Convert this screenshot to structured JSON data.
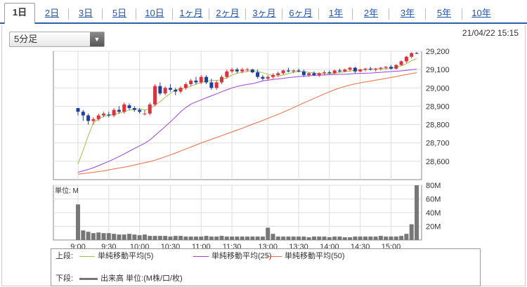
{
  "tabs": [
    "1日",
    "2日",
    "3日",
    "5日",
    "10日",
    "1ヶ月",
    "2ヶ月",
    "3ヶ月",
    "6ヶ月",
    "1年",
    "2年",
    "3年",
    "5年",
    "10年"
  ],
  "active_tab": "1日",
  "interval_select": "5分足",
  "datetime": "21/04/22 15:15",
  "volume_unit_label": "単位: M",
  "legend": {
    "upper_label": "上段:",
    "lower_label": "下段:",
    "ma5": "単純移動平均(5)",
    "ma25": "単純移動平均(25)",
    "ma50": "単純移動平均(50)",
    "volume": "出来高 単位:(M株/口/枚)"
  },
  "colors": {
    "up": "#d9333f",
    "down": "#1f3f9c",
    "ma5": "#9ac44a",
    "ma25": "#9b44d6",
    "ma50": "#ee6a40",
    "volume": "#777777",
    "tab_link": "#2255aa"
  },
  "chart_data": [
    {
      "type": "candlestick",
      "title": "",
      "x": [
        "9:00",
        "9:30",
        "10:00",
        "10:30",
        "11:00",
        "11:30",
        "13:00",
        "13:30",
        "14:00",
        "14:30",
        "15:00"
      ],
      "ylim": [
        28500,
        29200
      ],
      "yticks": [
        28600,
        28700,
        28800,
        28900,
        29000,
        29100,
        29200
      ],
      "ytick_labels": [
        "28,600",
        "28,700",
        "28,800",
        "28,900",
        "29,000",
        "29,100",
        "29,200"
      ],
      "grid": true,
      "candles": [
        [
          28890,
          28890,
          28850,
          28870
        ],
        [
          28870,
          28880,
          28820,
          28850
        ],
        [
          28850,
          28860,
          28800,
          28820
        ],
        [
          28820,
          28840,
          28800,
          28830
        ],
        [
          28830,
          28860,
          28820,
          28850
        ],
        [
          28850,
          28870,
          28840,
          28860
        ],
        [
          28855,
          28870,
          28840,
          28850
        ],
        [
          28850,
          28890,
          28840,
          28880
        ],
        [
          28880,
          28900,
          28860,
          28870
        ],
        [
          28870,
          28920,
          28860,
          28910
        ],
        [
          28905,
          28915,
          28880,
          28890
        ],
        [
          28890,
          28900,
          28870,
          28880
        ],
        [
          28880,
          28890,
          28860,
          28870
        ],
        [
          28860,
          28880,
          28850,
          28860
        ],
        [
          28860,
          28920,
          28850,
          28910
        ],
        [
          28910,
          29020,
          28900,
          29010
        ],
        [
          29010,
          29030,
          28960,
          28970
        ],
        [
          28970,
          29010,
          28960,
          29000
        ],
        [
          29000,
          29020,
          28980,
          28990
        ],
        [
          28990,
          29000,
          28960,
          28980
        ],
        [
          28980,
          29010,
          28970,
          29000
        ],
        [
          29000,
          29030,
          28990,
          29020
        ],
        [
          29020,
          29050,
          29010,
          29040
        ],
        [
          29040,
          29060,
          29020,
          29030
        ],
        [
          29030,
          29070,
          29020,
          29060
        ],
        [
          29060,
          29070,
          29020,
          29030
        ],
        [
          29030,
          29050,
          28990,
          29000
        ],
        [
          29000,
          29040,
          28990,
          29030
        ],
        [
          29030,
          29070,
          29020,
          29060
        ],
        [
          29060,
          29100,
          29050,
          29090
        ],
        [
          29090,
          29110,
          29080,
          29100
        ],
        [
          29100,
          29110,
          29080,
          29090
        ],
        [
          29090,
          29110,
          29080,
          29100
        ],
        [
          29100,
          29110,
          29090,
          29100
        ],
        [
          29100,
          29105,
          29080,
          29085
        ],
        [
          29085,
          29100,
          29050,
          29060
        ],
        [
          29060,
          29070,
          29040,
          29050
        ],
        [
          29050,
          29070,
          29040,
          29060
        ],
        [
          29060,
          29080,
          29050,
          29070
        ],
        [
          29070,
          29090,
          29060,
          29080
        ],
        [
          29080,
          29100,
          29070,
          29095
        ],
        [
          29095,
          29110,
          29085,
          29090
        ],
        [
          29090,
          29100,
          29080,
          29095
        ],
        [
          29095,
          29105,
          29085,
          29090
        ],
        [
          29090,
          29100,
          29060,
          29070
        ],
        [
          29070,
          29085,
          29060,
          29080
        ],
        [
          29080,
          29090,
          29065,
          29070
        ],
        [
          29070,
          29085,
          29060,
          29080
        ],
        [
          29080,
          29095,
          29070,
          29085
        ],
        [
          29085,
          29095,
          29075,
          29080
        ],
        [
          29080,
          29100,
          29075,
          29095
        ],
        [
          29095,
          29105,
          29085,
          29090
        ],
        [
          29090,
          29105,
          29085,
          29100
        ],
        [
          29100,
          29115,
          29090,
          29110
        ],
        [
          29110,
          29115,
          29080,
          29090
        ],
        [
          29090,
          29105,
          29085,
          29100
        ],
        [
          29100,
          29110,
          29090,
          29105
        ],
        [
          29105,
          29115,
          29095,
          29100
        ],
        [
          29100,
          29110,
          29090,
          29105
        ],
        [
          29105,
          29115,
          29095,
          29110
        ],
        [
          29110,
          29120,
          29100,
          29115
        ],
        [
          29115,
          29125,
          29100,
          29105
        ],
        [
          29105,
          29130,
          29100,
          29125
        ],
        [
          29125,
          29150,
          29120,
          29145
        ],
        [
          29145,
          29175,
          29135,
          29170
        ],
        [
          29170,
          29195,
          29160,
          29190
        ],
        [
          29190,
          29195,
          29185,
          29188
        ]
      ],
      "ma5": [
        28585,
        28660,
        28740,
        28810,
        28830,
        28845,
        28850,
        28855,
        28862,
        28870,
        28880,
        28885,
        28885,
        28880,
        28885,
        28905,
        28925,
        28950,
        28970,
        28990,
        28995,
        29000,
        29010,
        29020,
        29030,
        29035,
        29040,
        29040,
        29045,
        29055,
        29070,
        29080,
        29085,
        29090,
        29095,
        29090,
        29082,
        29075,
        29068,
        29065,
        29070,
        29078,
        29085,
        29090,
        29088,
        29085,
        29082,
        29078,
        29076,
        29078,
        29080,
        29084,
        29088,
        29092,
        29096,
        29098,
        29100,
        29102,
        29103,
        29104,
        29106,
        29108,
        29112,
        29120,
        29132,
        29148,
        29160
      ],
      "ma25": [
        28540,
        28548,
        28556,
        28565,
        28576,
        28588,
        28600,
        28612,
        28626,
        28640,
        28655,
        28670,
        28684,
        28698,
        28716,
        28740,
        28765,
        28790,
        28815,
        28842,
        28870,
        28893,
        28912,
        28924,
        28935,
        28946,
        28957,
        28968,
        28979,
        28990,
        29000,
        29008,
        29014,
        29019,
        29023,
        29030,
        29038,
        29042,
        29046,
        29049,
        29052,
        29056,
        29059,
        29062,
        29064,
        29066,
        29068,
        29069,
        29070,
        29072,
        29073,
        29074,
        29075,
        29076,
        29078,
        29079,
        29080,
        29081,
        29083,
        29085,
        29087,
        29089,
        29091,
        29093,
        29096,
        29099,
        29102
      ],
      "ma50": [
        28530,
        28533,
        28536,
        28540,
        28544,
        28548,
        28553,
        28558,
        28563,
        28568,
        28574,
        28580,
        28586,
        28592,
        28598,
        28606,
        28615,
        28625,
        28635,
        28645,
        28656,
        28667,
        28678,
        28689,
        28700,
        28710,
        28720,
        28730,
        28740,
        28750,
        28760,
        28770,
        28780,
        28791,
        28802,
        28812,
        28823,
        28834,
        28845,
        28856,
        28868,
        28880,
        28893,
        28906,
        28918,
        28930,
        28943,
        28955,
        28967,
        28979,
        28990,
        29000,
        29008,
        29016,
        29022,
        29028,
        29033,
        29037,
        29042,
        29047,
        29052,
        29057,
        29062,
        29068,
        29073,
        29078,
        29083
      ]
    },
    {
      "type": "bar",
      "title": "",
      "ylabel": "単位: M",
      "ylim": [
        0,
        80
      ],
      "yticks": [
        20,
        40,
        60,
        80
      ],
      "ytick_labels": [
        "20M",
        "40M",
        "60M",
        "80M"
      ],
      "values": [
        52,
        14,
        12,
        10,
        11,
        10,
        10,
        9,
        8,
        8,
        9,
        8,
        7,
        8,
        6,
        6,
        6,
        6,
        5,
        6,
        6,
        5,
        5,
        5,
        5,
        6,
        5,
        5,
        6,
        5,
        5,
        5,
        5,
        5,
        5,
        5,
        5,
        18,
        9,
        5,
        5,
        5,
        5,
        5,
        5,
        4,
        5,
        5,
        5,
        4,
        5,
        5,
        4,
        4,
        5,
        5,
        5,
        5,
        5,
        6,
        5,
        5,
        5,
        6,
        9,
        23,
        80
      ]
    }
  ]
}
